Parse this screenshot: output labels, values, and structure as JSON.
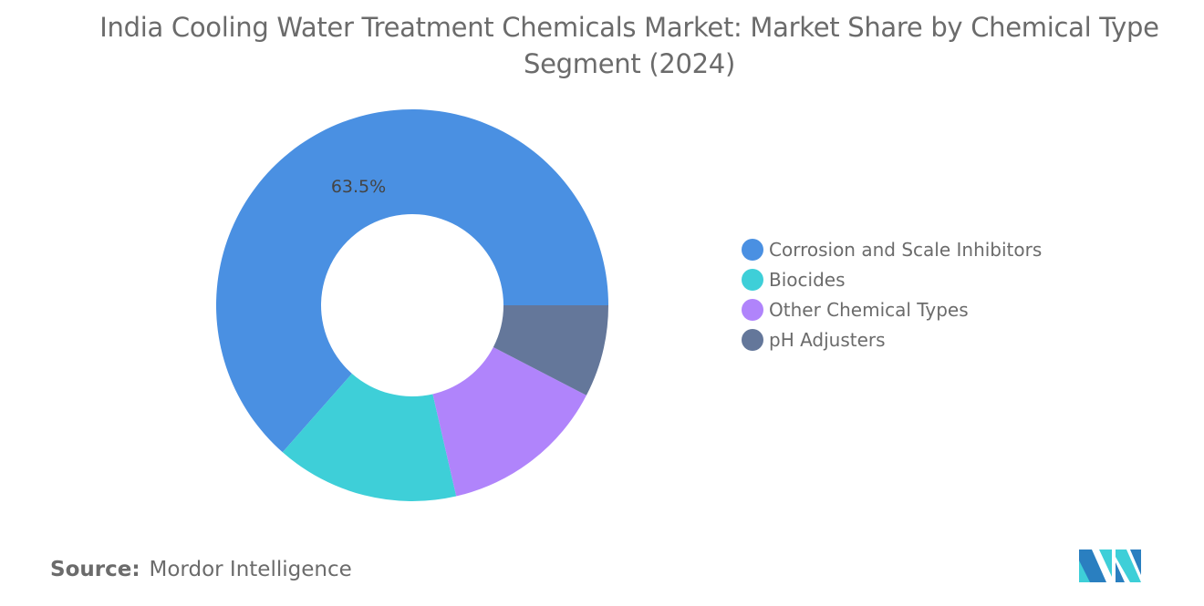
{
  "chart_data": {
    "type": "pie",
    "donut": true,
    "title": "India Cooling Water Treatment Chemicals Market: Market Share by Chemical Type Segment (2024)",
    "categories": [
      "Corrosion and Scale Inhibitors",
      "Biocides",
      "Other Chemical Types",
      "pH Adjusters"
    ],
    "values": [
      63.5,
      15.1,
      13.8,
      7.6
    ],
    "data_labels": [
      "63.5%",
      "",
      "",
      ""
    ],
    "colors": [
      "#4a90e2",
      "#3ecfd8",
      "#b084fb",
      "#64779a"
    ],
    "legend_position": "right"
  },
  "source": {
    "label": "Source:",
    "value": "Mordor Intelligence"
  },
  "logo": {
    "text": "Mordor Intelligence",
    "colors": [
      "#2a7fc0",
      "#3ecfd8"
    ]
  }
}
